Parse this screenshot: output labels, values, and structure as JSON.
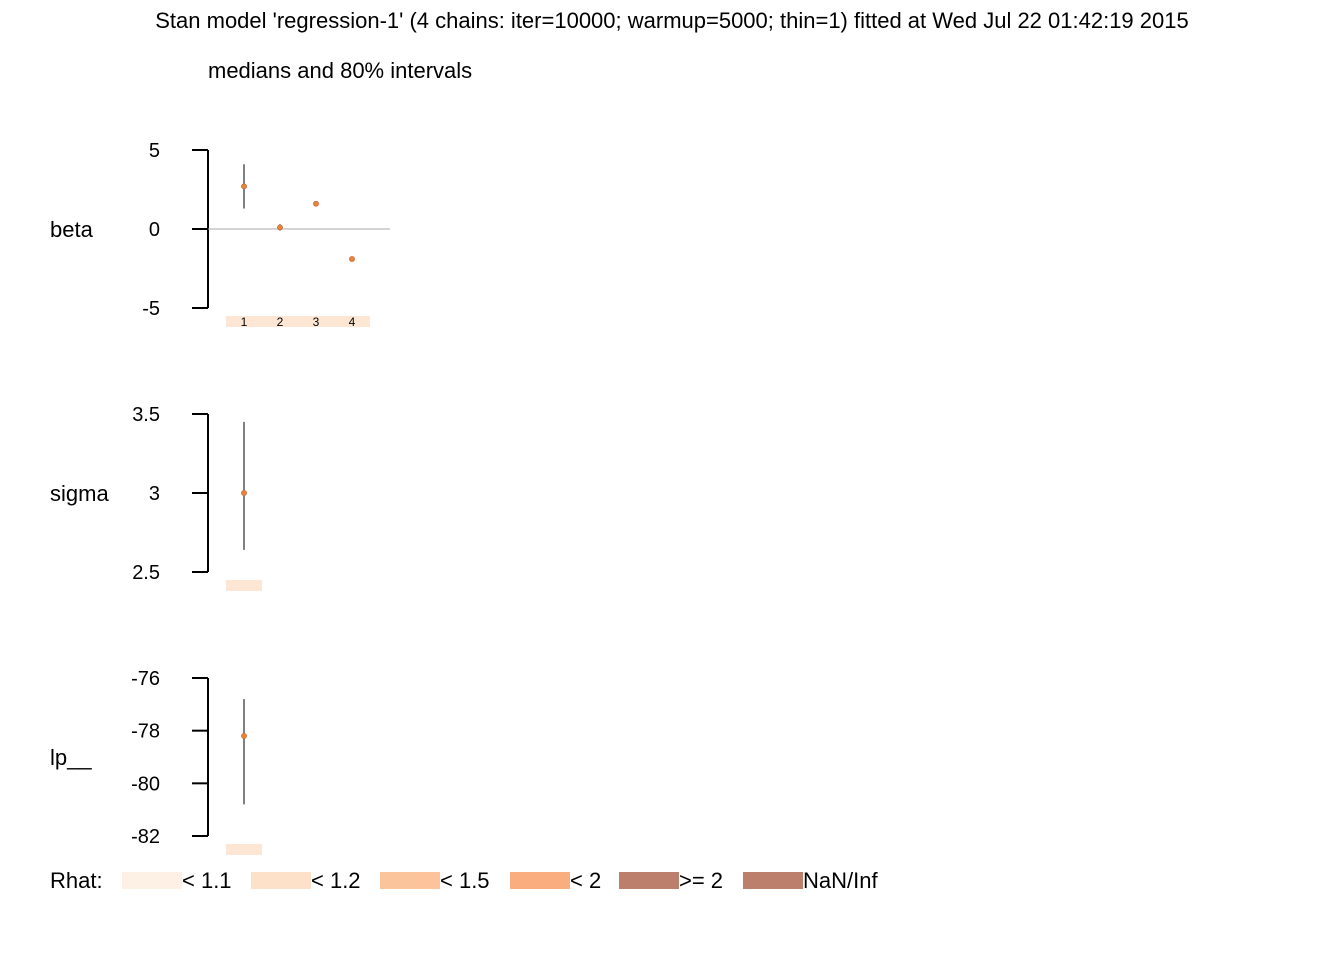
{
  "title": "Stan model 'regression-1' (4 chains: iter=10000; warmup=5000; thin=1) fitted at Wed Jul 22 01:42:19 2015",
  "subtitle": "medians and 80% intervals",
  "rhat_legend": {
    "label": "Rhat:",
    "items": [
      {
        "label": "< 1.1",
        "color": "#fdf1e5"
      },
      {
        "label": "< 1.2",
        "color": "#fde1c8"
      },
      {
        "label": "< 1.5",
        "color": "#fcc49a"
      },
      {
        "label": "< 2",
        "color": "#faae80"
      },
      {
        "label": ">= 2",
        "color": "#bc7f6b"
      },
      {
        "label": "NaN/Inf",
        "color": "#bc7f6b"
      }
    ]
  },
  "colors": {
    "median_point": "#e8833a",
    "interval_line": "#000000",
    "zero_line": "#aaaaaa",
    "rhat_bar": "#fde6d3"
  },
  "chart_data": [
    {
      "type": "scatter",
      "parameter": "beta",
      "ylim": [
        -5,
        5
      ],
      "yticks": [
        "5",
        "0",
        "-5"
      ],
      "ytick_values": [
        5,
        0,
        -5
      ],
      "zero_line": true,
      "categories": [
        "1",
        "2",
        "3",
        "4"
      ],
      "medians": [
        2.7,
        0.1,
        1.6,
        -1.9
      ],
      "intervals": [
        [
          1.3,
          4.1
        ],
        [
          -0.1,
          0.3
        ],
        [
          1.5,
          1.7
        ],
        [
          -2.0,
          -1.8
        ]
      ]
    },
    {
      "type": "scatter",
      "parameter": "sigma",
      "ylim": [
        2.5,
        3.5
      ],
      "yticks": [
        "3.5",
        "3",
        "2.5"
      ],
      "ytick_values": [
        3.5,
        3,
        2.5
      ],
      "zero_line": false,
      "categories": [
        ""
      ],
      "medians": [
        3.0
      ],
      "intervals": [
        [
          2.64,
          3.45
        ]
      ]
    },
    {
      "type": "scatter",
      "parameter": "lp__",
      "ylim": [
        -82,
        -76
      ],
      "yticks": [
        "-76",
        "-78",
        "-80",
        "-82"
      ],
      "ytick_values": [
        -76,
        -78,
        -80,
        -82
      ],
      "zero_line": false,
      "categories": [
        ""
      ],
      "medians": [
        -78.2
      ],
      "intervals": [
        [
          -80.8,
          -76.8
        ]
      ]
    }
  ]
}
